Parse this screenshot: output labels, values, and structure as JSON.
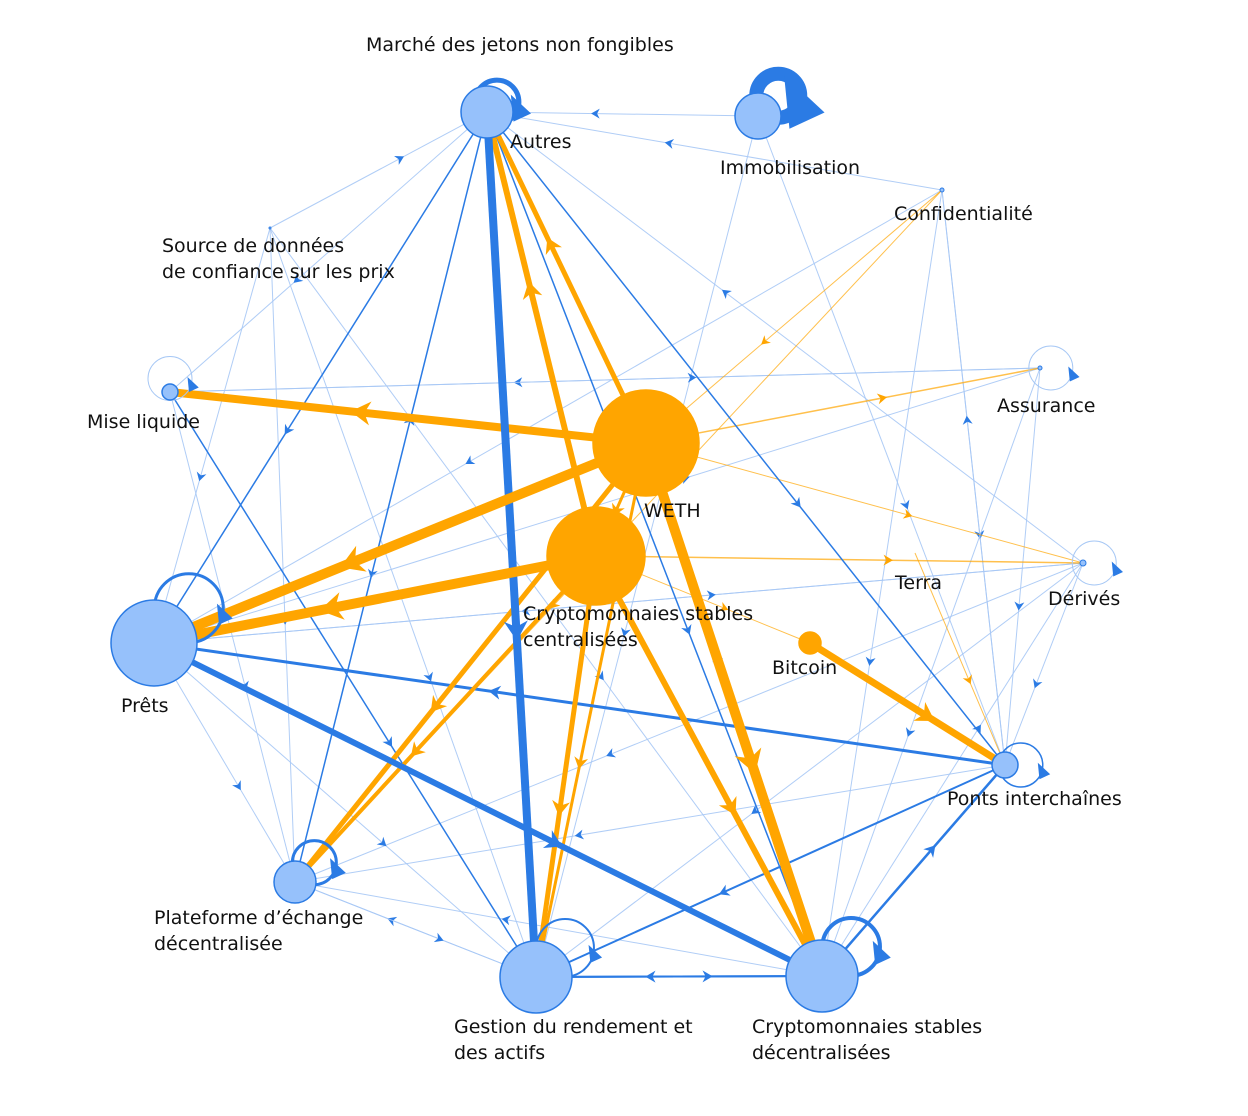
{
  "colors": {
    "blue": "#2b7be4",
    "lightblue": "#a7c8f5",
    "orange": "#ffa500",
    "node_blue": "#96c1fb",
    "node_stroke": "#2b7be4"
  },
  "nodes": [
    {
      "id": "nft",
      "label": "Marché des jetons non fongibles",
      "color": "blue"
    },
    {
      "id": "autres",
      "label": "Autres",
      "color": "blue"
    },
    {
      "id": "immo",
      "label": "Immobilisation",
      "color": "blue"
    },
    {
      "id": "conf",
      "label": "Confidentialité",
      "color": "blue"
    },
    {
      "id": "source",
      "label": "Source de données\nde confiance sur les prix",
      "color": "blue"
    },
    {
      "id": "assur",
      "label": "Assurance",
      "color": "blue"
    },
    {
      "id": "mise",
      "label": "Mise liquide",
      "color": "blue"
    },
    {
      "id": "weth",
      "label": "WETH",
      "color": "orange"
    },
    {
      "id": "csc",
      "label": "Cryptomonnaies stables\ncentralisées",
      "color": "orange"
    },
    {
      "id": "terra",
      "label": "Terra",
      "color": "orange"
    },
    {
      "id": "derives",
      "label": "Dérivés",
      "color": "blue"
    },
    {
      "id": "prets",
      "label": "Prêts",
      "color": "blue"
    },
    {
      "id": "bitcoin",
      "label": "Bitcoin",
      "color": "orange"
    },
    {
      "id": "ponts",
      "label": "Ponts interchaînes",
      "color": "blue"
    },
    {
      "id": "plateforme",
      "label": "Plateforme d’échange\ndécentralisée",
      "color": "blue"
    },
    {
      "id": "gestion",
      "label": "Gestion du rendement et\ndes actifs",
      "color": "blue"
    },
    {
      "id": "csd",
      "label": "Cryptomonnaies stables\ndécentralisées",
      "color": "blue"
    }
  ],
  "edges": [
    {
      "from": "weth",
      "to": "mise",
      "w": 8,
      "c": "orange"
    },
    {
      "from": "weth",
      "to": "prets",
      "w": 10,
      "c": "orange"
    },
    {
      "from": "csc",
      "to": "prets",
      "w": 10,
      "c": "orange"
    },
    {
      "from": "weth",
      "to": "autres",
      "w": 5,
      "c": "orange"
    },
    {
      "from": "csc",
      "to": "autres",
      "w": 6,
      "c": "orange"
    },
    {
      "from": "weth",
      "to": "csd",
      "w": 10,
      "c": "orange"
    },
    {
      "from": "csc",
      "to": "csd",
      "w": 6,
      "c": "orange"
    },
    {
      "from": "csc",
      "to": "gestion",
      "w": 5,
      "c": "orange"
    },
    {
      "from": "weth",
      "to": "gestion",
      "w": 3,
      "c": "orange"
    },
    {
      "from": "weth",
      "to": "plateforme",
      "w": 5,
      "c": "orange"
    },
    {
      "from": "csc",
      "to": "plateforme",
      "w": 4,
      "c": "orange"
    },
    {
      "from": "weth",
      "to": "csc",
      "w": 3,
      "c": "orange"
    },
    {
      "from": "weth",
      "to": "assur",
      "w": 1.5,
      "c": "orange"
    },
    {
      "from": "weth",
      "to": "derives",
      "w": 1,
      "c": "orange"
    },
    {
      "from": "csc",
      "to": "derives",
      "w": 1.5,
      "c": "orange"
    },
    {
      "from": "bitcoin",
      "to": "ponts",
      "w": 7,
      "c": "orange"
    },
    {
      "from": "conf",
      "to": "weth",
      "w": 1,
      "c": "orange"
    },
    {
      "from": "conf",
      "to": "plateforme",
      "w": 1,
      "c": "orange"
    },
    {
      "from": "terra",
      "to": "ponts",
      "w": 1,
      "c": "orange"
    },
    {
      "from": "csc",
      "to": "bitcoin",
      "w": 1,
      "c": "orange"
    },
    {
      "from": "autres",
      "to": "gestion",
      "w": 8,
      "c": "blue"
    },
    {
      "from": "prets",
      "to": "csd",
      "w": 6,
      "c": "blue"
    },
    {
      "from": "ponts",
      "to": "prets",
      "w": 3,
      "c": "blue"
    },
    {
      "from": "ponts",
      "to": "gestion",
      "w": 2,
      "c": "blue"
    },
    {
      "from": "csd",
      "to": "ponts",
      "w": 2.5,
      "c": "blue"
    },
    {
      "from": "gestion",
      "to": "csd",
      "w": 2,
      "c": "blue"
    },
    {
      "from": "csd",
      "to": "gestion",
      "w": 2,
      "c": "blue"
    },
    {
      "from": "autres",
      "to": "prets",
      "w": 1.5,
      "c": "blue"
    },
    {
      "from": "autres",
      "to": "csd",
      "w": 1.5,
      "c": "blue"
    },
    {
      "from": "autres",
      "to": "ponts",
      "w": 1.5,
      "c": "blue"
    },
    {
      "from": "plateforme",
      "to": "autres",
      "w": 1.5,
      "c": "blue"
    },
    {
      "from": "mise",
      "to": "gestion",
      "w": 1.5,
      "c": "blue"
    },
    {
      "from": "csd",
      "to": "weth",
      "w": 1.5,
      "c": "blue"
    },
    {
      "from": "immo",
      "to": "autres",
      "w": 1,
      "c": "lightblue"
    },
    {
      "from": "conf",
      "to": "autres",
      "w": 1,
      "c": "lightblue"
    },
    {
      "from": "assur",
      "to": "mise",
      "w": 1,
      "c": "lightblue"
    },
    {
      "from": "source",
      "to": "autres",
      "w": 1,
      "c": "lightblue"
    },
    {
      "from": "source",
      "to": "plateforme",
      "w": 1,
      "c": "lightblue"
    },
    {
      "from": "source",
      "to": "prets",
      "w": 1,
      "c": "lightblue"
    },
    {
      "from": "source",
      "to": "gestion",
      "w": 1,
      "c": "lightblue"
    },
    {
      "from": "source",
      "to": "csd",
      "w": 1,
      "c": "lightblue"
    },
    {
      "from": "autres",
      "to": "mise",
      "w": 1,
      "c": "lightblue"
    },
    {
      "from": "autres",
      "to": "plateforme",
      "w": 1,
      "c": "lightblue"
    },
    {
      "from": "immo",
      "to": "gestion",
      "w": 1,
      "c": "lightblue"
    },
    {
      "from": "immo",
      "to": "ponts",
      "w": 1,
      "c": "lightblue"
    },
    {
      "from": "conf",
      "to": "ponts",
      "w": 1,
      "c": "lightblue"
    },
    {
      "from": "conf",
      "to": "csd",
      "w": 1,
      "c": "lightblue"
    },
    {
      "from": "conf",
      "to": "prets",
      "w": 1,
      "c": "lightblue"
    },
    {
      "from": "assur",
      "to": "csd",
      "w": 1,
      "c": "lightblue"
    },
    {
      "from": "assur",
      "to": "ponts",
      "w": 1,
      "c": "lightblue"
    },
    {
      "from": "derives",
      "to": "ponts",
      "w": 1,
      "c": "lightblue"
    },
    {
      "from": "derives",
      "to": "gestion",
      "w": 1,
      "c": "lightblue"
    },
    {
      "from": "derives",
      "to": "prets",
      "w": 1,
      "c": "lightblue"
    },
    {
      "from": "derives",
      "to": "plateforme",
      "w": 1,
      "c": "lightblue"
    },
    {
      "from": "derives",
      "to": "autres",
      "w": 1,
      "c": "lightblue"
    },
    {
      "from": "ponts",
      "to": "conf",
      "w": 1,
      "c": "lightblue"
    },
    {
      "from": "ponts",
      "to": "plateforme",
      "w": 1,
      "c": "lightblue"
    },
    {
      "from": "csd",
      "to": "derives",
      "w": 1,
      "c": "lightblue"
    },
    {
      "from": "csd",
      "to": "plateforme",
      "w": 1,
      "c": "lightblue"
    },
    {
      "from": "gestion",
      "to": "plateforme",
      "w": 1,
      "c": "lightblue"
    },
    {
      "from": "plateforme",
      "to": "gestion",
      "w": 1,
      "c": "lightblue"
    },
    {
      "from": "prets",
      "to": "plateforme",
      "w": 1,
      "c": "lightblue"
    },
    {
      "from": "prets",
      "to": "gestion",
      "w": 1,
      "c": "lightblue"
    },
    {
      "from": "mise",
      "to": "plateforme",
      "w": 1,
      "c": "lightblue"
    },
    {
      "from": "mise",
      "to": "assur",
      "w": 1,
      "c": "lightblue"
    },
    {
      "from": "prets",
      "to": "assur",
      "w": 1,
      "c": "lightblue"
    },
    {
      "from": "prets",
      "to": "derives",
      "w": 1,
      "c": "lightblue"
    }
  ],
  "self_loops": [
    {
      "node": "autres",
      "w": 5,
      "c": "blue"
    },
    {
      "node": "immo",
      "w": 14,
      "c": "blue"
    },
    {
      "node": "prets",
      "w": 3,
      "c": "blue"
    },
    {
      "node": "plateforme",
      "w": 3,
      "c": "blue"
    },
    {
      "node": "gestion",
      "w": 2,
      "c": "blue"
    },
    {
      "node": "csd",
      "w": 4,
      "c": "blue"
    },
    {
      "node": "ponts",
      "w": 1.5,
      "c": "blue"
    },
    {
      "node": "derives",
      "w": 1,
      "c": "lightblue"
    },
    {
      "node": "assur",
      "w": 1,
      "c": "lightblue"
    },
    {
      "node": "mise",
      "w": 1,
      "c": "lightblue"
    }
  ]
}
